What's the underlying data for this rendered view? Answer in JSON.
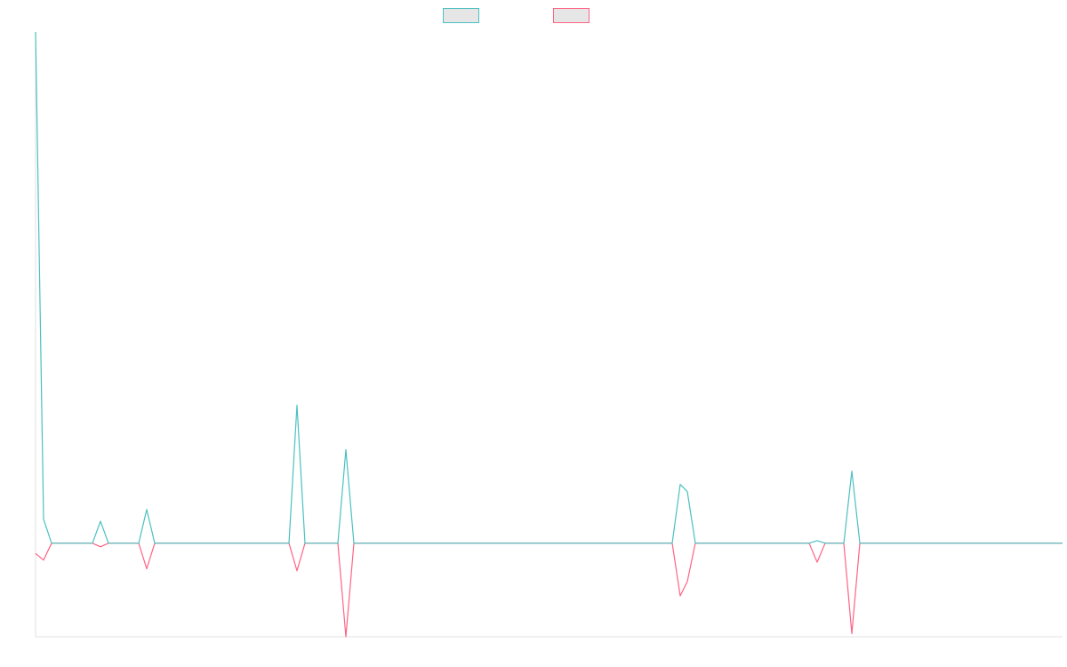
{
  "chart_data": {
    "type": "line",
    "x": [
      0,
      9,
      18,
      64,
      73,
      82,
      116,
      125,
      134,
      285,
      294,
      303,
      340,
      349,
      358,
      716,
      725,
      733,
      742,
      870,
      879,
      888,
      909,
      918,
      927,
      1155
    ],
    "series": [
      {
        "color": "#4bc0c0",
        "values": [
          100,
          4.7,
          0,
          0,
          4.3,
          0,
          0,
          6.6,
          0,
          0,
          27.0,
          0,
          0,
          18.3,
          0,
          0,
          11.5,
          10.1,
          0,
          0,
          0.5,
          0,
          0,
          14.1,
          0,
          0
        ]
      },
      {
        "color": "#ff6384",
        "values": [
          -2,
          -3.3,
          0,
          0,
          -0.7,
          0,
          0,
          -5.0,
          0,
          0,
          -5.4,
          0,
          0,
          -18.3,
          0,
          0,
          -10.3,
          -7.5,
          0,
          0,
          -3.7,
          0,
          0,
          -17.7,
          0,
          0
        ]
      }
    ],
    "xlim": [
      0,
      1155
    ],
    "ylim": [
      -18.3,
      100
    ]
  }
}
